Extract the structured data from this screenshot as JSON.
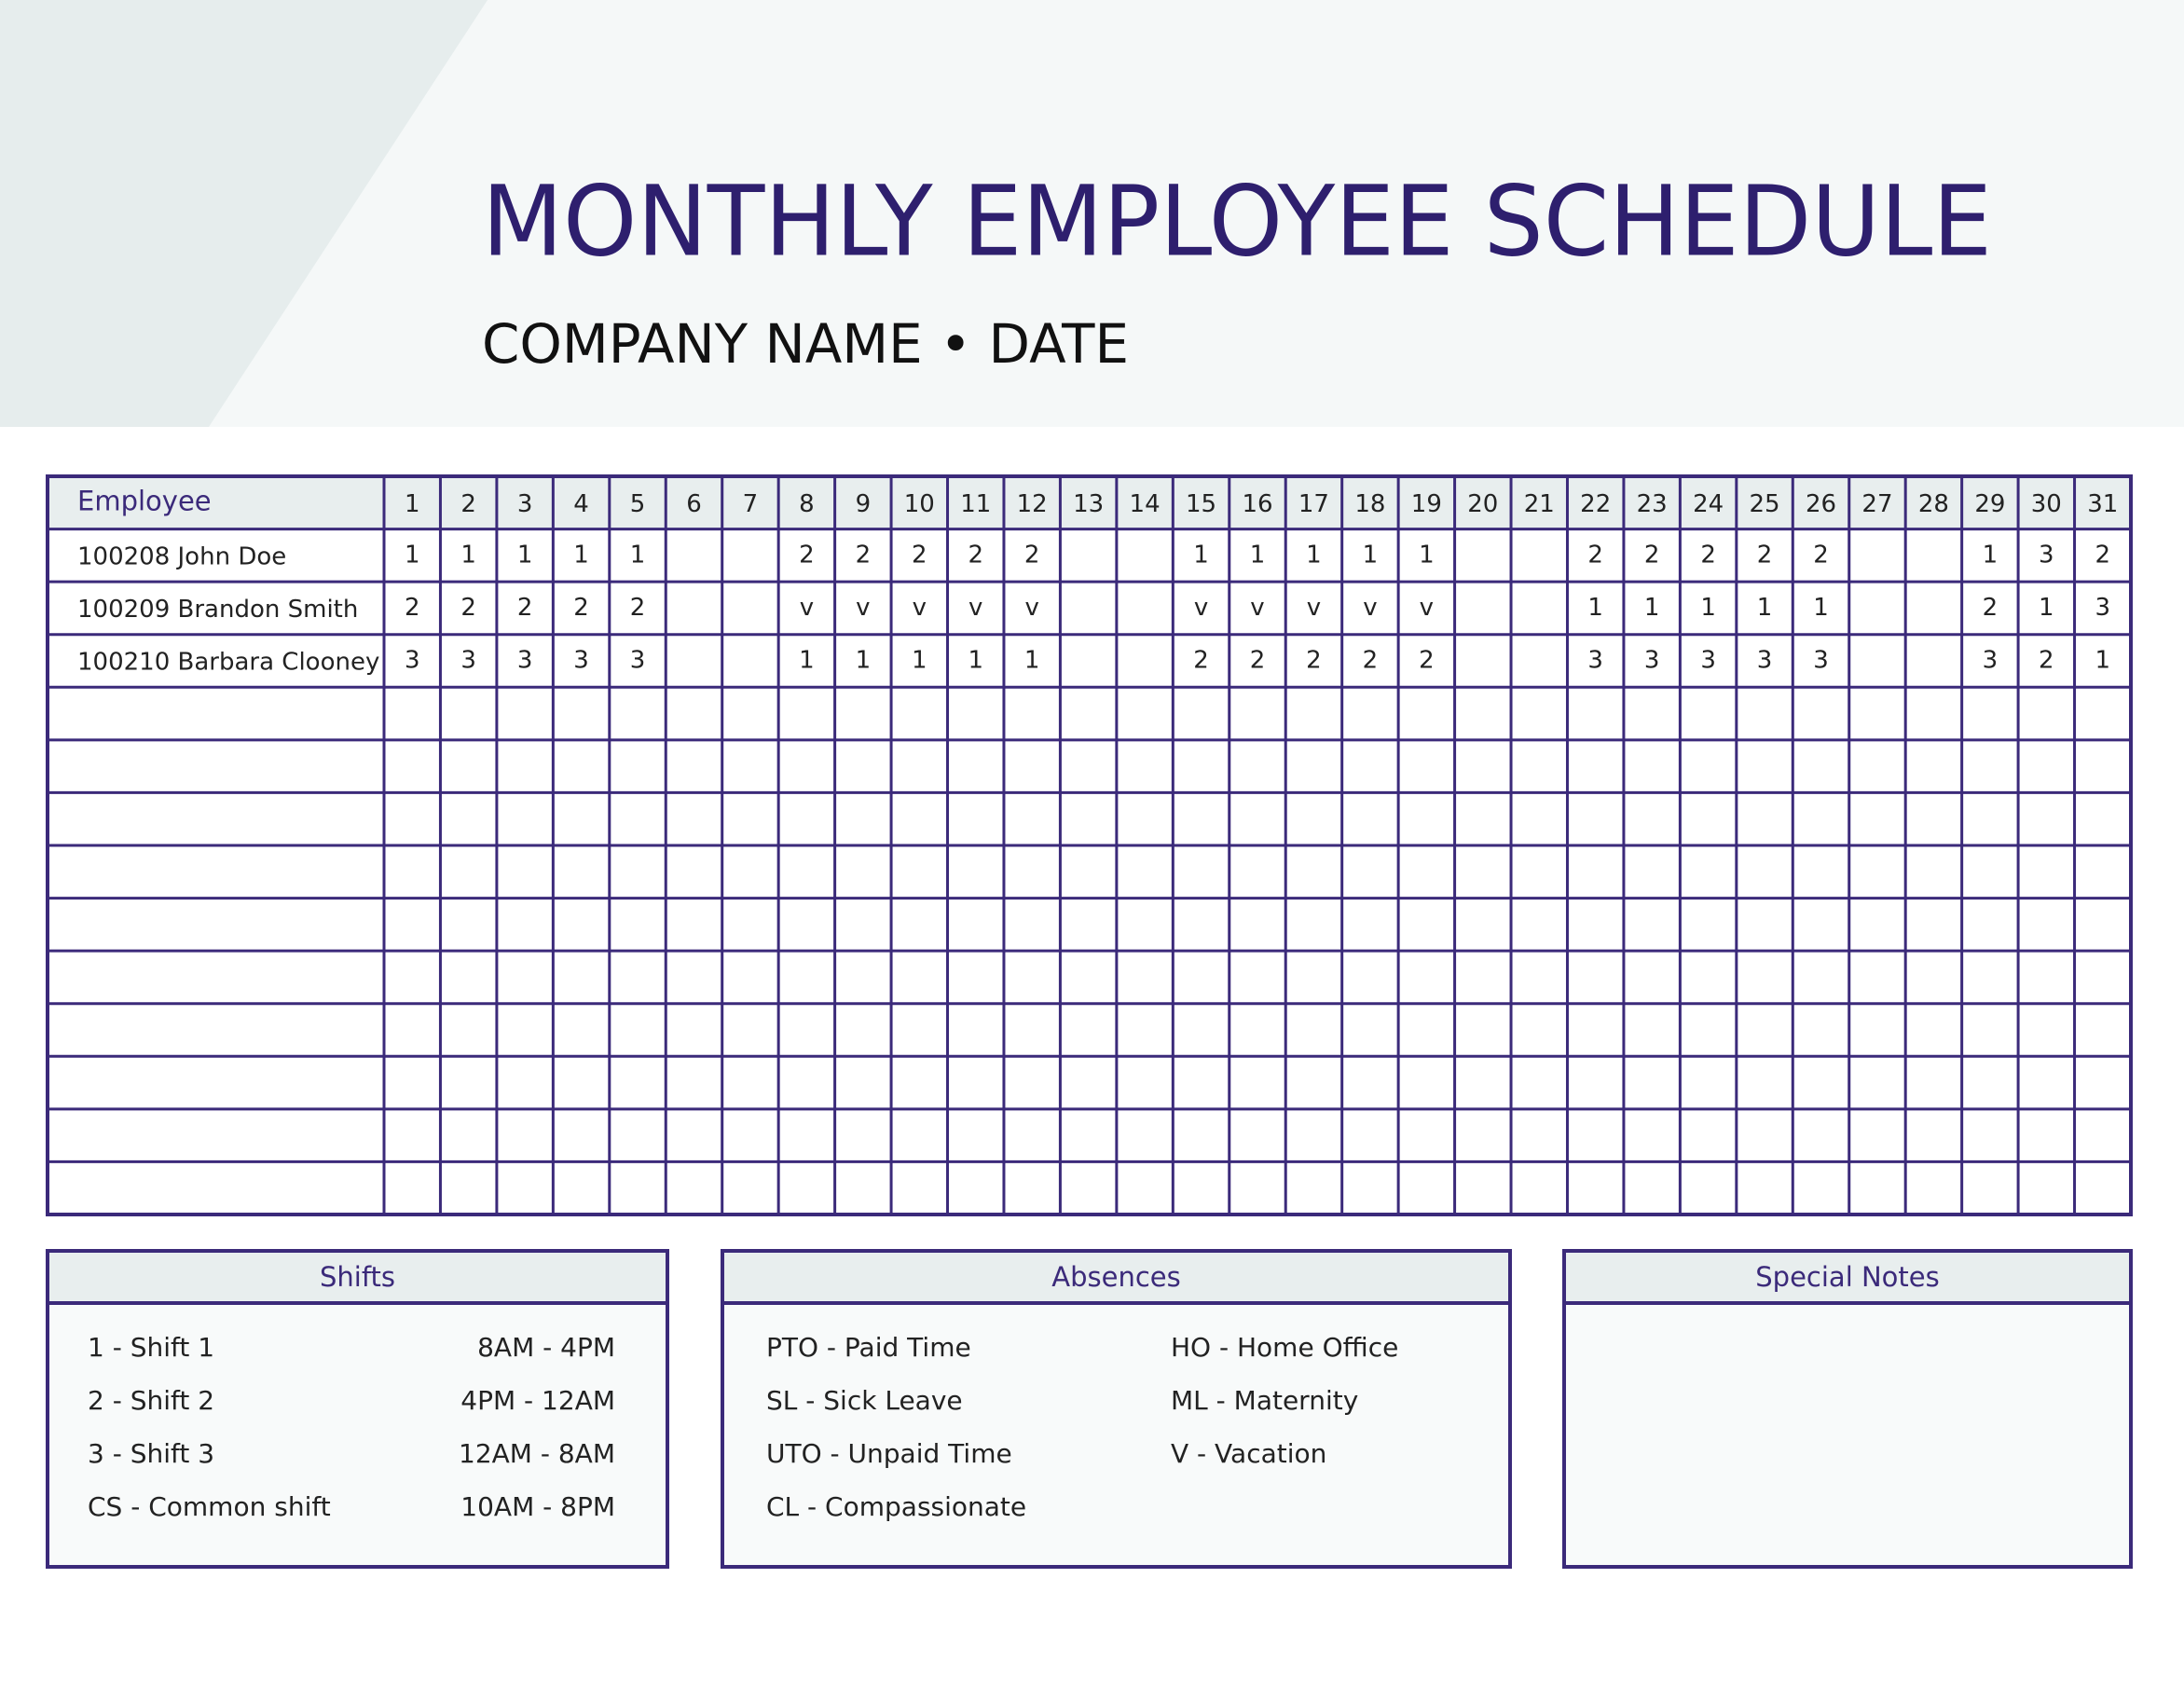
{
  "header": {
    "title": "MONTHLY EMPLOYEE SCHEDULE",
    "subtitle": "COMPANY NAME • DATE"
  },
  "table": {
    "header": {
      "employee": "Employee",
      "days": [
        1,
        2,
        3,
        4,
        5,
        6,
        7,
        8,
        9,
        10,
        11,
        12,
        13,
        14,
        15,
        16,
        17,
        18,
        19,
        20,
        21,
        22,
        23,
        24,
        25,
        26,
        27,
        28,
        29,
        30,
        31
      ]
    },
    "rows": [
      {
        "employee": "100208 John Doe",
        "cells": [
          "1",
          "1",
          "1",
          "1",
          "1",
          null,
          null,
          "2",
          "2",
          "2",
          "2",
          "2",
          null,
          null,
          "1",
          "1",
          "1",
          "1",
          "1",
          null,
          null,
          "2",
          "2",
          "2",
          "2",
          "2",
          null,
          null,
          "1",
          "3",
          "2"
        ]
      },
      {
        "employee": "100209 Brandon Smith",
        "cells": [
          "2",
          "2",
          "2",
          "2",
          "2",
          null,
          null,
          "v",
          "v",
          "v",
          "v",
          "v",
          null,
          null,
          "v",
          "v",
          "v",
          "v",
          "v",
          null,
          null,
          "1",
          "1",
          "1",
          "1",
          "1",
          null,
          null,
          "2",
          "1",
          "3"
        ]
      },
      {
        "employee": "100210 Barbara Clooney",
        "cells": [
          "3",
          "3",
          "3",
          "3",
          "3",
          null,
          null,
          "1",
          "1",
          "1",
          "1",
          "1",
          null,
          null,
          "2",
          "2",
          "2",
          "2",
          "2",
          null,
          null,
          "3",
          "3",
          "3",
          "3",
          "3",
          null,
          null,
          "3",
          "2",
          "1"
        ]
      }
    ]
  },
  "shifts": {
    "title": "Shifts",
    "items": [
      {
        "code": "1 - Shift 1",
        "time": "8AM - 4PM"
      },
      {
        "code": "2 - Shift 2",
        "time": "4PM - 12AM"
      },
      {
        "code": "3 - Shift 3",
        "time": "12AM - 8AM"
      },
      {
        "code": "CS - Common shift",
        "time": "10AM - 8PM"
      }
    ]
  },
  "absences": {
    "title": "Absences",
    "left": [
      "PTO - Paid Time",
      "SL - Sick Leave",
      "UTO - Unpaid Time",
      "CL - Compassionate"
    ],
    "right": [
      "HO - Home Office",
      "ML - Maternity",
      "V - Vacation"
    ]
  },
  "notes": {
    "title": "Special Notes"
  }
}
